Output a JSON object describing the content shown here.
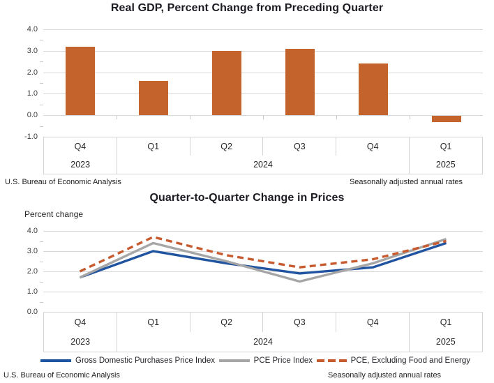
{
  "chart_data": [
    {
      "type": "bar",
      "title": "Real GDP, Percent Change from Preceding Quarter",
      "categories": [
        "Q4",
        "Q1",
        "Q2",
        "Q3",
        "Q4",
        "Q1"
      ],
      "year_groups": [
        {
          "label": "2023",
          "span": 1
        },
        {
          "label": "2024",
          "span": 4
        },
        {
          "label": "2025",
          "span": 1
        }
      ],
      "values": [
        3.2,
        1.6,
        3.0,
        3.1,
        2.4,
        -0.3
      ],
      "ylim": [
        -1.0,
        4.0
      ],
      "ytick_labels": [
        "4.0",
        "3.0",
        "2.0",
        "1.0",
        "0.0",
        "-1.0"
      ],
      "bar_color": "#C4632C",
      "grid": true,
      "source": "U.S. Bureau of Economic Analysis",
      "note": "Seasonally adjusted annual rates"
    },
    {
      "type": "line",
      "title": "Quarter-to-Quarter Change in Prices",
      "ylabel": "Percent change",
      "categories": [
        "Q4",
        "Q1",
        "Q2",
        "Q3",
        "Q4",
        "Q1"
      ],
      "year_groups": [
        {
          "label": "2023",
          "span": 1
        },
        {
          "label": "2024",
          "span": 4
        },
        {
          "label": "2025",
          "span": 1
        }
      ],
      "series": [
        {
          "name": "Gross Domestic Purchases Price Index",
          "values": [
            1.7,
            3.0,
            2.4,
            1.9,
            2.2,
            3.4
          ],
          "color": "#2053A0",
          "dashed": false
        },
        {
          "name": "PCE Price Index",
          "values": [
            1.7,
            3.4,
            2.5,
            1.5,
            2.4,
            3.6
          ],
          "color": "#A6A6A6",
          "dashed": false
        },
        {
          "name": "PCE, Excluding Food and Energy",
          "values": [
            2.0,
            3.7,
            2.8,
            2.2,
            2.6,
            3.5
          ],
          "color": "#C75B2F",
          "dashed": true
        }
      ],
      "ylim": [
        0.0,
        4.0
      ],
      "ytick_labels": [
        "4.0",
        "3.0",
        "2.0",
        "1.0",
        "0.0"
      ],
      "grid": true,
      "legend_position": "bottom",
      "source": "U.S. Bureau of Economic Analysis",
      "note": "Seasonally adjusted annual rates"
    }
  ]
}
